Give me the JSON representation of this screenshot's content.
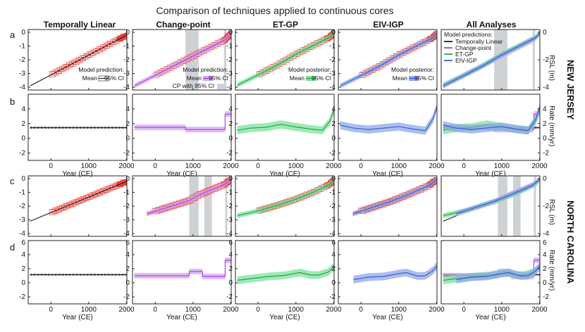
{
  "title": "Comparison of techniques applied to continuous cores",
  "columns": [
    "Temporally Linear",
    "Change-point",
    "ET-GP",
    "EIV-IGP",
    "All Analyses"
  ],
  "row_letters": [
    "a",
    "b",
    "c",
    "d"
  ],
  "region_labels": [
    "NEW JERSEY",
    "NORTH CAROLINA"
  ],
  "right_axis_labels": {
    "rsl": "RSL (m)",
    "rate": "Rate (mm/yr)"
  },
  "x_axis_label": "Year (CE)",
  "x_ticks": [
    "0",
    "1000",
    "2000"
  ],
  "y_ticks_rsl": [
    "0",
    "-1",
    "-2",
    "-3",
    "-4"
  ],
  "y_ticks_rsl_all": [
    "0",
    "-2",
    "-4"
  ],
  "y_ticks_rate": [
    "4",
    "2",
    "0",
    "-2"
  ],
  "y_ticks_rate_top": "6",
  "legends": {
    "tl": {
      "title": "Model prediction:",
      "mean": "Mean",
      "ci": "95% CI"
    },
    "cp": {
      "title": "Model prediction:",
      "mean": "Mean",
      "ci": "95% CI",
      "cp": "CP with 95% CI"
    },
    "et": {
      "title": "Model posterior:",
      "mean": "Mean",
      "ci": "95% CI"
    },
    "eiv": {
      "title": "Model posterior:",
      "mean": "Mean",
      "ci": "95% CI"
    },
    "all": {
      "title": "Model predictions:",
      "items": [
        "Temporally Linear",
        "Change-point",
        "ET-GP",
        "EIV-IGP"
      ]
    }
  },
  "colors": {
    "data": "#e8413c",
    "tl": "#222222",
    "cp": "#b040e0",
    "et": "#1faa3a",
    "eiv": "#3a5fd0",
    "cpband": "#d4a8f0",
    "etband": "#7fe0a0",
    "eivband": "#8fa8ea",
    "gray": "#cfd2d4"
  },
  "chart_data": [
    {
      "region": "New Jersey",
      "type": "line",
      "xlabel": "Year (CE)",
      "ylabel": "RSL (m)",
      "xlim": [
        -600,
        2010
      ],
      "ylim": [
        -4.2,
        0.2
      ],
      "series": [
        {
          "name": "Temporally Linear",
          "x": [
            -550,
            2010
          ],
          "y": [
            -3.9,
            -0.2
          ]
        },
        {
          "name": "Change-point",
          "x": [
            -550,
            1450,
            1850,
            2010
          ],
          "y": [
            -3.9,
            -1.1,
            -0.55,
            -0.05
          ]
        },
        {
          "name": "ET-GP",
          "x": [
            -550,
            0,
            500,
            1000,
            1500,
            1900,
            2010
          ],
          "y": [
            -3.85,
            -3.1,
            -2.4,
            -1.6,
            -0.9,
            -0.35,
            0.0
          ]
        },
        {
          "name": "EIV-IGP",
          "x": [
            -550,
            0,
            500,
            1000,
            1500,
            1900,
            2010
          ],
          "y": [
            -3.9,
            -3.15,
            -2.45,
            -1.65,
            -0.95,
            -0.4,
            -0.05
          ]
        }
      ]
    },
    {
      "region": "New Jersey",
      "type": "line",
      "xlabel": "Year (CE)",
      "ylabel": "Rate (mm/yr)",
      "xlim": [
        -600,
        2010
      ],
      "ylim": [
        -3,
        6
      ],
      "change_points": [
        [
          800,
          1150
        ],
        [
          1820,
          1880
        ]
      ],
      "series": [
        {
          "name": "Temporally Linear",
          "x": [
            -550,
            2010
          ],
          "y": [
            1.45,
            1.45
          ]
        },
        {
          "name": "Change-point",
          "x": [
            -550,
            800,
            800,
            1850,
            1850,
            2010
          ],
          "y": [
            1.5,
            1.5,
            1.2,
            1.2,
            3.3,
            3.3
          ]
        },
        {
          "name": "ET-GP",
          "x": [
            -550,
            -200,
            200,
            600,
            1000,
            1400,
            1700,
            1900,
            2010
          ],
          "y": [
            1.1,
            1.4,
            1.5,
            1.9,
            1.55,
            1.25,
            1.1,
            2.3,
            4.0
          ]
        },
        {
          "name": "EIV-IGP",
          "x": [
            -550,
            -200,
            200,
            600,
            1000,
            1400,
            1700,
            1900,
            2010
          ],
          "y": [
            1.8,
            1.4,
            1.2,
            1.4,
            1.6,
            1.25,
            1.05,
            2.6,
            4.3
          ]
        }
      ]
    },
    {
      "region": "North Carolina",
      "type": "line",
      "xlabel": "Year (CE)",
      "ylabel": "RSL (m)",
      "xlim": [
        -600,
        2010
      ],
      "ylim": [
        -4.2,
        0.2
      ],
      "series": [
        {
          "name": "Temporally Linear",
          "x": [
            -550,
            2010
          ],
          "y": [
            -3.1,
            -0.2
          ]
        },
        {
          "name": "Change-point",
          "x": [
            -200,
            900,
            1150,
            1850,
            2010
          ],
          "y": [
            -2.55,
            -1.6,
            -1.2,
            -0.4,
            -0.05
          ]
        },
        {
          "name": "ET-GP",
          "x": [
            -550,
            0,
            500,
            1000,
            1500,
            1900,
            2010
          ],
          "y": [
            -2.7,
            -2.35,
            -1.95,
            -1.5,
            -0.95,
            -0.4,
            -0.05
          ]
        },
        {
          "name": "EIV-IGP",
          "x": [
            -200,
            300,
            800,
            1300,
            1800,
            2010
          ],
          "y": [
            -2.55,
            -2.1,
            -1.65,
            -1.1,
            -0.5,
            -0.05
          ]
        }
      ]
    },
    {
      "region": "North Carolina",
      "type": "line",
      "xlabel": "Year (CE)",
      "ylabel": "Rate (mm/yr)",
      "xlim": [
        -600,
        2010
      ],
      "ylim": [
        -3,
        6
      ],
      "change_points": [
        [
          900,
          1150
        ],
        [
          1300,
          1500
        ],
        [
          1850,
          1900
        ]
      ],
      "series": [
        {
          "name": "Temporally Linear",
          "x": [
            -550,
            2010
          ],
          "y": [
            1.15,
            1.15
          ]
        },
        {
          "name": "Change-point",
          "x": [
            -550,
            900,
            900,
            1250,
            1250,
            1850,
            1850,
            2010
          ],
          "y": [
            1.0,
            1.0,
            1.6,
            1.6,
            0.9,
            0.9,
            3.2,
            3.2
          ]
        },
        {
          "name": "ET-GP",
          "x": [
            -550,
            -100,
            300,
            700,
            1100,
            1400,
            1600,
            1850,
            2010
          ],
          "y": [
            0.35,
            0.65,
            0.9,
            1.05,
            1.45,
            1.1,
            1.1,
            1.5,
            2.3
          ]
        },
        {
          "name": "EIV-IGP",
          "x": [
            -200,
            200,
            600,
            1000,
            1200,
            1500,
            1700,
            1900,
            2010
          ],
          "y": [
            0.45,
            0.8,
            0.9,
            1.3,
            1.45,
            0.95,
            1.0,
            1.7,
            2.4
          ]
        }
      ]
    }
  ]
}
